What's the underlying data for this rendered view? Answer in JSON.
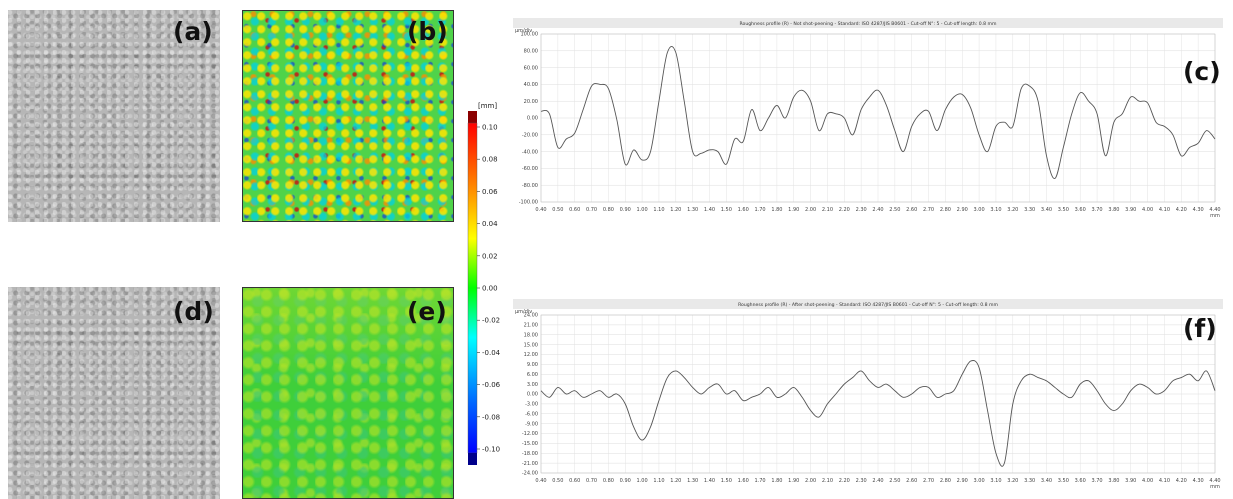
{
  "panel_labels": {
    "a": "(a)",
    "b": "(b)",
    "c": "(c)",
    "d": "(d)",
    "e": "(e)",
    "f": "(f)"
  },
  "colorbar": {
    "unit": "[mm]",
    "ticks": [
      "0.10",
      "0.08",
      "0.06",
      "0.04",
      "0.02",
      "0.00",
      "-0.02",
      "-0.04",
      "-0.06",
      "-0.08",
      "-0.10"
    ],
    "colors": [
      "#8b0000",
      "#ff0000",
      "#ff8c00",
      "#ffff00",
      "#00ff00",
      "#00ffff",
      "#0064ff",
      "#00008b"
    ]
  },
  "chart_data": [
    {
      "type": "line",
      "title": "Roughness profile (R) - Not shot-peening - Standard: ISO 4287/JIS B0601 - Cut-off N°: 5 - Cut-off length: 0.8 mm",
      "ylabel": "µm/div",
      "xlabel": "mm",
      "xlim": [
        0.4,
        4.4
      ],
      "ylim": [
        -100,
        100
      ],
      "yticks": [
        "100.00",
        "80.00",
        "60.00",
        "40.00",
        "20.00",
        "0.00",
        "-20.00",
        "-40.00",
        "-60.00",
        "-80.00",
        "-100.00"
      ],
      "xticks": [
        "0.40",
        "0.50",
        "0.60",
        "0.70",
        "0.80",
        "0.90",
        "1.00",
        "1.10",
        "1.20",
        "1.30",
        "1.40",
        "1.50",
        "1.60",
        "1.70",
        "1.80",
        "1.90",
        "2.00",
        "2.10",
        "2.20",
        "2.30",
        "2.40",
        "2.50",
        "2.60",
        "2.70",
        "2.80",
        "2.90",
        "3.00",
        "3.10",
        "3.20",
        "3.30",
        "3.40",
        "3.50",
        "3.60",
        "3.70",
        "3.80",
        "3.90",
        "4.00",
        "4.10",
        "4.20",
        "4.30",
        "4.40"
      ],
      "grid": true,
      "x": [
        0.4,
        0.45,
        0.5,
        0.55,
        0.6,
        0.65,
        0.7,
        0.75,
        0.8,
        0.85,
        0.9,
        0.95,
        1.0,
        1.05,
        1.1,
        1.15,
        1.2,
        1.25,
        1.3,
        1.35,
        1.4,
        1.45,
        1.5,
        1.55,
        1.6,
        1.65,
        1.7,
        1.75,
        1.8,
        1.85,
        1.9,
        1.95,
        2.0,
        2.05,
        2.1,
        2.15,
        2.2,
        2.25,
        2.3,
        2.35,
        2.4,
        2.45,
        2.5,
        2.55,
        2.6,
        2.65,
        2.7,
        2.75,
        2.8,
        2.85,
        2.9,
        2.95,
        3.0,
        3.05,
        3.1,
        3.15,
        3.2,
        3.25,
        3.3,
        3.35,
        3.4,
        3.45,
        3.5,
        3.55,
        3.6,
        3.65,
        3.7,
        3.75,
        3.8,
        3.85,
        3.9,
        3.95,
        4.0,
        4.05,
        4.1,
        4.15,
        4.2,
        4.25,
        4.3,
        4.35,
        4.4
      ],
      "y": [
        8,
        5,
        -35,
        -25,
        -18,
        10,
        38,
        40,
        35,
        -2,
        -55,
        -38,
        -50,
        -40,
        20,
        78,
        78,
        20,
        -40,
        -42,
        -38,
        -40,
        -55,
        -25,
        -28,
        10,
        -15,
        0,
        15,
        0,
        25,
        33,
        20,
        -15,
        5,
        5,
        0,
        -20,
        10,
        25,
        33,
        15,
        -15,
        -40,
        -10,
        5,
        8,
        -15,
        10,
        25,
        28,
        12,
        -20,
        -40,
        -10,
        -5,
        -10,
        35,
        38,
        20,
        -45,
        -72,
        -35,
        5,
        30,
        20,
        5,
        -45,
        -5,
        5,
        25,
        20,
        18,
        -5,
        -10,
        -20,
        -45,
        -35,
        -30,
        -15,
        -25
      ]
    },
    {
      "type": "line",
      "title": "Roughness profile (R) - After shot-peening - Standard: ISO 4287/JIS B0601 - Cut-off N°: 5 - Cut-off length: 0.8 mm",
      "ylabel": "µm/div",
      "xlabel": "mm",
      "xlim": [
        0.4,
        4.4
      ],
      "ylim": [
        -24,
        24
      ],
      "yticks": [
        "24.00",
        "21.00",
        "18.00",
        "15.00",
        "12.00",
        "9.00",
        "6.00",
        "3.00",
        "0.00",
        "-3.00",
        "-6.00",
        "-9.00",
        "-12.00",
        "-15.00",
        "-18.00",
        "-21.00",
        "-24.00"
      ],
      "xticks": [
        "0.40",
        "0.50",
        "0.60",
        "0.70",
        "0.80",
        "0.90",
        "1.00",
        "1.10",
        "1.20",
        "1.30",
        "1.40",
        "1.50",
        "1.60",
        "1.70",
        "1.80",
        "1.90",
        "2.00",
        "2.10",
        "2.20",
        "2.30",
        "2.40",
        "2.50",
        "2.60",
        "2.70",
        "2.80",
        "2.90",
        "3.00",
        "3.10",
        "3.20",
        "3.30",
        "3.40",
        "3.50",
        "3.60",
        "3.70",
        "3.80",
        "3.90",
        "4.00",
        "4.10",
        "4.20",
        "4.30",
        "4.40"
      ],
      "grid": true,
      "x": [
        0.4,
        0.45,
        0.5,
        0.55,
        0.6,
        0.65,
        0.7,
        0.75,
        0.8,
        0.85,
        0.9,
        0.95,
        1.0,
        1.05,
        1.1,
        1.15,
        1.2,
        1.25,
        1.3,
        1.35,
        1.4,
        1.45,
        1.5,
        1.55,
        1.6,
        1.65,
        1.7,
        1.75,
        1.8,
        1.85,
        1.9,
        1.95,
        2.0,
        2.05,
        2.1,
        2.15,
        2.2,
        2.25,
        2.3,
        2.35,
        2.4,
        2.45,
        2.5,
        2.55,
        2.6,
        2.65,
        2.7,
        2.75,
        2.8,
        2.85,
        2.9,
        2.95,
        3.0,
        3.05,
        3.1,
        3.15,
        3.2,
        3.25,
        3.3,
        3.35,
        3.4,
        3.45,
        3.5,
        3.55,
        3.6,
        3.65,
        3.7,
        3.75,
        3.8,
        3.85,
        3.9,
        3.95,
        4.0,
        4.05,
        4.1,
        4.15,
        4.2,
        4.25,
        4.3,
        4.35,
        4.4
      ],
      "y": [
        1,
        -1,
        2,
        0,
        1,
        -1,
        0,
        1,
        -1,
        0,
        -3,
        -10,
        -14,
        -10,
        -2,
        5,
        7,
        5,
        2,
        0,
        2,
        3,
        0,
        1,
        -2,
        -1,
        0,
        2,
        -1,
        0,
        2,
        -1,
        -5,
        -7,
        -3,
        0,
        3,
        5,
        7,
        4,
        2,
        3,
        1,
        -1,
        0,
        2,
        2,
        -1,
        0,
        1,
        6,
        10,
        8,
        -5,
        -18,
        -21,
        -3,
        4,
        6,
        5,
        4,
        2,
        0,
        -1,
        3,
        4,
        1,
        -3,
        -5,
        -3,
        1,
        3,
        2,
        0,
        1,
        4,
        5,
        6,
        4,
        7,
        1
      ]
    }
  ]
}
